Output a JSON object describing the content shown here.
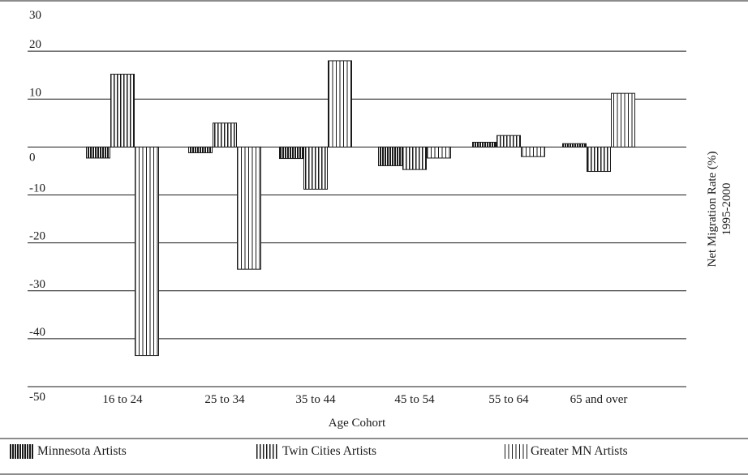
{
  "chart_data": {
    "type": "bar",
    "categories": [
      "16 to 24",
      "25 to 34",
      "35 to 44",
      "45 to 54",
      "55 to 64",
      "65 and over"
    ],
    "series": [
      {
        "name": "Minnesota Artists",
        "values": [
          -2.3,
          -1.2,
          -2.4,
          -3.9,
          1.0,
          0.7
        ]
      },
      {
        "name": "Twin Cities Artists",
        "values": [
          15.2,
          5.0,
          -8.8,
          -4.7,
          2.4,
          -5.1
        ]
      },
      {
        "name": "Greater MN Artists",
        "values": [
          -43.5,
          -25.5,
          18.0,
          -2.3,
          -2.0,
          11.2
        ]
      }
    ],
    "ylim": [
      -50,
      30
    ],
    "yticks": [
      "30",
      "20",
      "10",
      "0",
      "-10",
      "-20",
      "-30",
      "-40",
      "-50"
    ],
    "xlabel": "Age Cohort",
    "ylabel_line1": "Net Migration Rate (%)",
    "ylabel_line2": "1995-2000",
    "grid": true,
    "legend_position": "bottom"
  }
}
